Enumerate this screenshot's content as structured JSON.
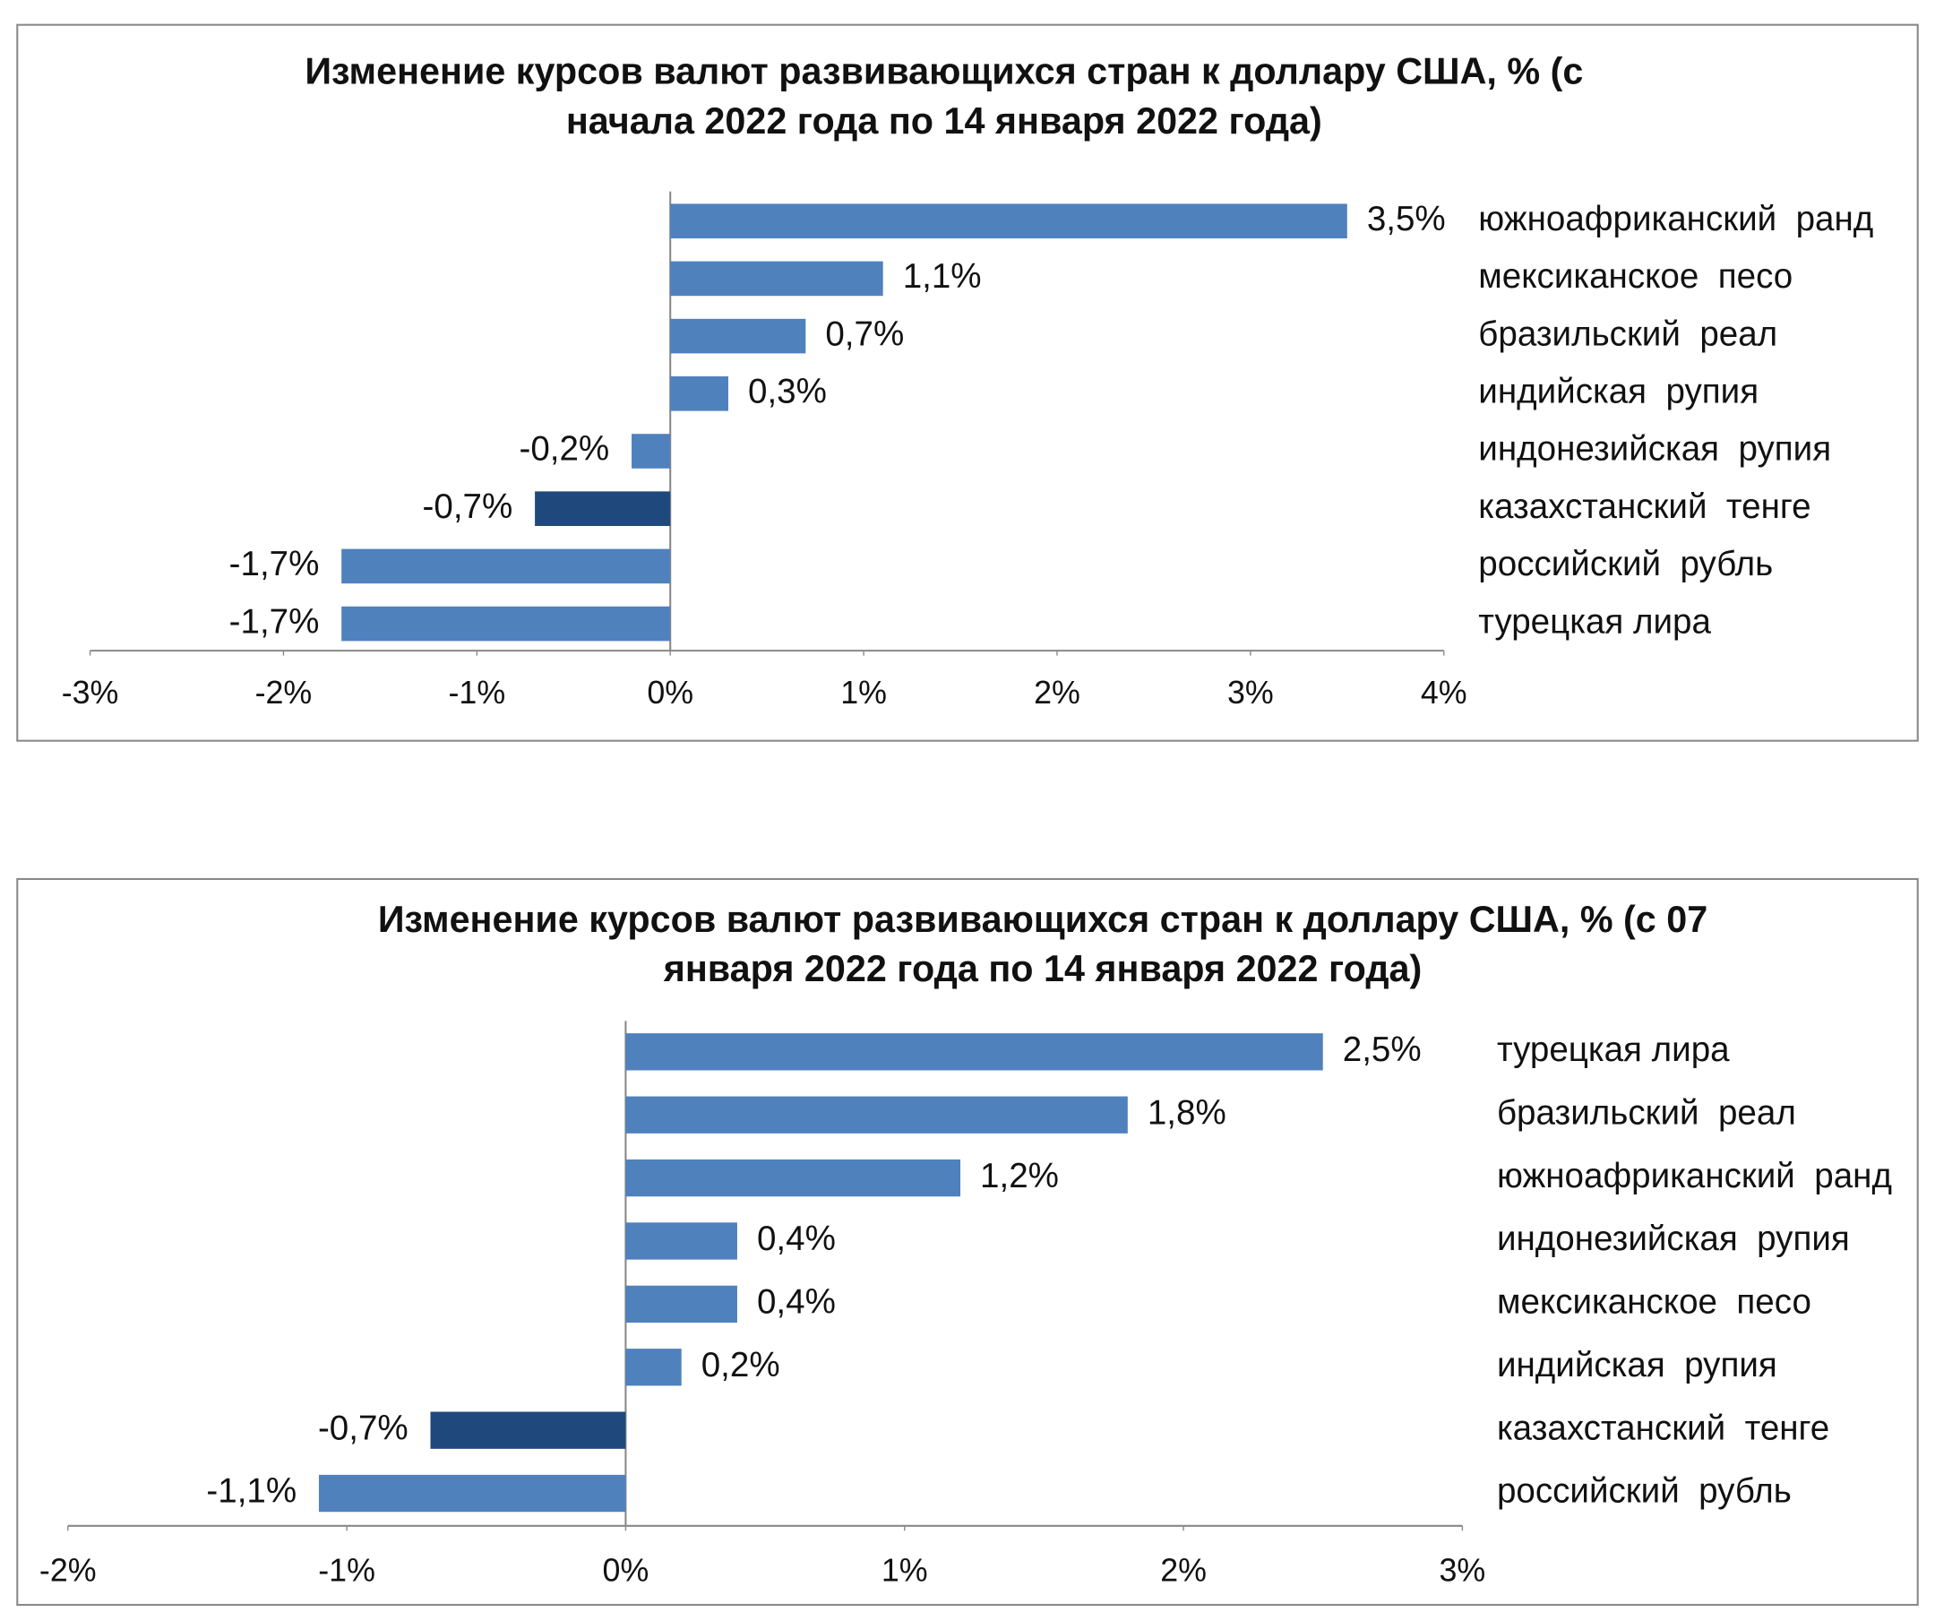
{
  "chart_data": [
    {
      "type": "hbar",
      "title": [
        "Изменение курсов валют развивающихся стран к доллару США, % (с",
        "начала 2022 года по 14 января 2022 года)"
      ],
      "categories": [
        "южноафриканский  ранд",
        "мексиканское  песо",
        "бразильский  реал",
        "индийская  рупия",
        "индонезийская  рупия",
        "казахстанский  тенге",
        "российский  рубль",
        "турецкая лира"
      ],
      "values": [
        3.5,
        1.1,
        0.7,
        0.3,
        -0.2,
        -0.7,
        -1.7,
        -1.7
      ],
      "value_labels": [
        "3,5%",
        "1,1%",
        "0,7%",
        "0,3%",
        "-0,2%",
        "-0,7%",
        "-1,7%",
        "-1,7%"
      ],
      "colors": [
        "#4f81bd",
        "#4f81bd",
        "#4f81bd",
        "#4f81bd",
        "#4f81bd",
        "#1f497d",
        "#4f81bd",
        "#4f81bd"
      ],
      "xlim": [
        -3,
        4
      ],
      "xticks": [
        {
          "value": -3,
          "label": "-3%"
        },
        {
          "value": -2,
          "label": "-2%"
        },
        {
          "value": -1,
          "label": "-1%"
        },
        {
          "value": 0,
          "label": "0%"
        },
        {
          "value": 1,
          "label": "1%"
        },
        {
          "value": 2,
          "label": "2%"
        },
        {
          "value": 3,
          "label": "3%"
        },
        {
          "value": 4,
          "label": "4%"
        }
      ]
    },
    {
      "type": "hbar",
      "title": [
        "Изменение курсов валют развивающихся стран к доллару США, % (с 07",
        "января 2022 года по 14 января 2022 года)"
      ],
      "categories": [
        "турецкая лира",
        "бразильский  реал",
        "южноафриканский  ранд",
        "индонезийская  рупия",
        "мексиканское  песо",
        "индийская  рупия",
        "казахстанский  тенге",
        "российский  рубль"
      ],
      "values": [
        2.5,
        1.8,
        1.2,
        0.4,
        0.4,
        0.2,
        -0.7,
        -1.1
      ],
      "value_labels": [
        "2,5%",
        "1,8%",
        "1,2%",
        "0,4%",
        "0,4%",
        "0,2%",
        "-0,7%",
        "-1,1%"
      ],
      "colors": [
        "#4f81bd",
        "#4f81bd",
        "#4f81bd",
        "#4f81bd",
        "#4f81bd",
        "#4f81bd",
        "#1f497d",
        "#4f81bd"
      ],
      "xlim": [
        -2,
        3
      ],
      "xticks": [
        {
          "value": -2,
          "label": "-2%"
        },
        {
          "value": -1,
          "label": "-1%"
        },
        {
          "value": 0,
          "label": "0%"
        },
        {
          "value": 1,
          "label": "1%"
        },
        {
          "value": 2,
          "label": "2%"
        },
        {
          "value": 3,
          "label": "3%"
        }
      ]
    }
  ]
}
